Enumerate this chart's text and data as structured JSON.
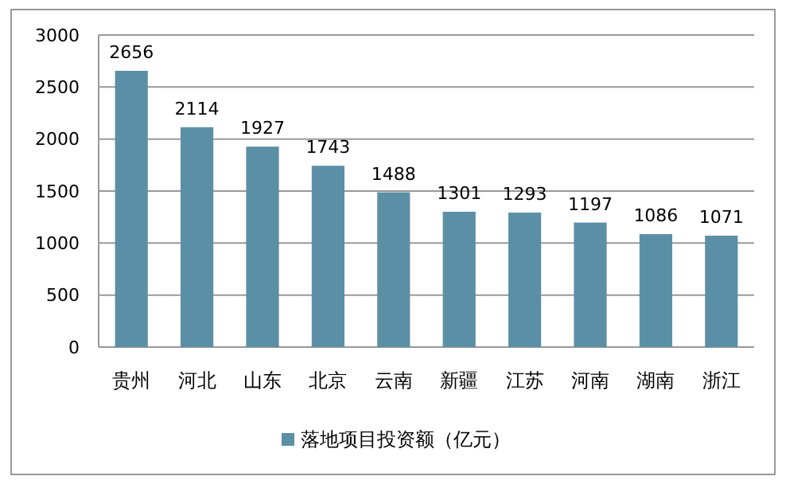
{
  "chart_data": {
    "type": "bar",
    "categories": [
      "贵州",
      "河北",
      "山东",
      "北京",
      "云南",
      "新疆",
      "江苏",
      "河南",
      "湖南",
      "浙江"
    ],
    "series": [
      {
        "name": "落地项目投资额（亿元）",
        "color": "#5b8fa6",
        "values": [
          2656,
          2114,
          1927,
          1743,
          1488,
          1301,
          1293,
          1197,
          1086,
          1071
        ]
      }
    ],
    "ylim": [
      0,
      3000
    ],
    "yticks": [
      0,
      500,
      1000,
      1500,
      2000,
      2500,
      3000
    ],
    "grid": "y",
    "data_labels": true,
    "legend": "bottom"
  }
}
